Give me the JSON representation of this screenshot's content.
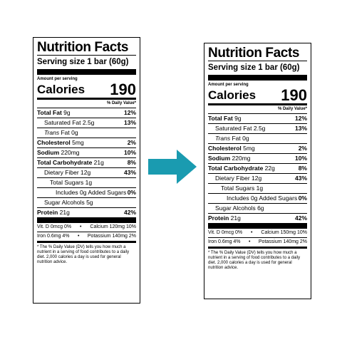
{
  "labels": [
    {
      "title": "Nutrition Facts",
      "serving": "Serving size  1 bar (60g)",
      "amount_per_serving": "Amount per serving",
      "calories_label": "Calories",
      "calories_value": "190",
      "dv_header": "% Daily Value*",
      "total_fat": {
        "label": "Total Fat",
        "amount": "9g",
        "dv": "12%"
      },
      "saturated_fat": {
        "label": "Saturated Fat 2.5g",
        "dv": "13%"
      },
      "trans_fat": {
        "label_italic": "Trans",
        "label": " Fat 0g"
      },
      "cholesterol": {
        "label": "Cholesterol",
        "amount": "5mg",
        "dv": "2%"
      },
      "sodium": {
        "label": "Sodium",
        "amount": "220mg",
        "dv": "10%"
      },
      "total_carb": {
        "label": "Total Carbohydrate",
        "amount": "21g",
        "dv": "8%"
      },
      "fiber": {
        "label": "Dietary Fiber 12g",
        "dv": "43%"
      },
      "total_sugars": {
        "label": "Total Sugars 1g"
      },
      "added_sugars": {
        "label": "Includes 0g Added Sugars",
        "dv": "0%"
      },
      "sugar_alcohols": {
        "label": "Sugar Alcohols 5g"
      },
      "protein": {
        "label": "Protein",
        "amount": "21g",
        "dv": "42%"
      },
      "vit_d": "Vit. D 0mcg 0%",
      "calcium": "Calcium 120mg 10%",
      "iron": "Iron 0.6mg 4%",
      "potassium": "Potassium 140mg 2%",
      "bullet": "•",
      "footnote": "* The % Daily Value (DV) tells you how much a nutrient in a serving of food contributes to a daily diet. 2,000 calories a day is used for general nutrition advice."
    },
    {
      "title": "Nutrition Facts",
      "serving": "Serving size  1 bar (60g)",
      "amount_per_serving": "Amount per serving",
      "calories_label": "Calories",
      "calories_value": "190",
      "dv_header": "% Daily Value*",
      "total_fat": {
        "label": "Total Fat",
        "amount": "9g",
        "dv": "12%"
      },
      "saturated_fat": {
        "label": "Saturated Fat 2.5g",
        "dv": "13%"
      },
      "trans_fat": {
        "label_italic": "Trans",
        "label": " Fat 0g"
      },
      "cholesterol": {
        "label": "Cholesterol",
        "amount": "5mg",
        "dv": "2%"
      },
      "sodium": {
        "label": "Sodium",
        "amount": "220mg",
        "dv": "10%"
      },
      "total_carb": {
        "label": "Total Carbohydrate",
        "amount": "22g",
        "dv": "8%"
      },
      "fiber": {
        "label": "Dietary Fiber 12g",
        "dv": "43%"
      },
      "total_sugars": {
        "label": "Total Sugars 1g"
      },
      "added_sugars": {
        "label": "Includes 0g Added Sugars",
        "dv": "0%"
      },
      "sugar_alcohols": {
        "label": "Sugar Alcohols 6g"
      },
      "protein": {
        "label": "Protein",
        "amount": "21g",
        "dv": "42%"
      },
      "vit_d": "Vit. D 0mcg 0%",
      "calcium": "Calcium 150mg 10%",
      "iron": "Iron 0.6mg 4%",
      "potassium": "Potassium 140mg 2%",
      "bullet": "•",
      "footnote": "* The % Daily Value (DV) tells you how much a nutrient in a serving of food contributes to a daily diet. 2,000 calories a day is used for general nutrition advice."
    }
  ],
  "arrow": {
    "icon": "arrow-right-icon",
    "color": "#1a9bb0"
  }
}
